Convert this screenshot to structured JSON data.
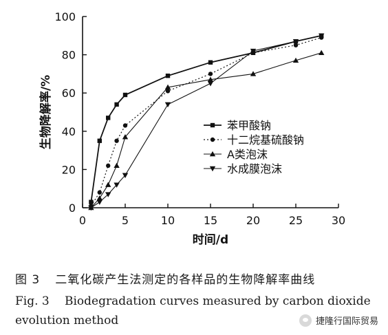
{
  "chart_data": {
    "type": "line",
    "xlabel": "时间/d",
    "ylabel": "生物降解率/%",
    "xlim": [
      0,
      30
    ],
    "ylim": [
      0,
      100
    ],
    "xticks": [
      0,
      5,
      10,
      15,
      20,
      25,
      30
    ],
    "yticks": [
      0,
      20,
      40,
      60,
      80,
      100
    ],
    "grid": false,
    "legend_position": "center-right",
    "series": [
      {
        "name": "苯甲酸钠",
        "marker": "square",
        "line_style": "solid",
        "points": [
          [
            1,
            3
          ],
          [
            2,
            35
          ],
          [
            3,
            47
          ],
          [
            4,
            54
          ],
          [
            5,
            59
          ],
          [
            10,
            69
          ],
          [
            15,
            76
          ],
          [
            20,
            81
          ],
          [
            25,
            87
          ],
          [
            28,
            90
          ]
        ]
      },
      {
        "name": "十二烷基硫酸钠",
        "marker": "circle",
        "line_style": "dotted",
        "points": [
          [
            1,
            1
          ],
          [
            2,
            8
          ],
          [
            3,
            22
          ],
          [
            4,
            35
          ],
          [
            5,
            43
          ],
          [
            10,
            61
          ],
          [
            15,
            70
          ],
          [
            20,
            81
          ],
          [
            25,
            85
          ],
          [
            28,
            89
          ]
        ]
      },
      {
        "name": "A类泡沫",
        "marker": "triangle-up",
        "line_style": "solid-thin",
        "points": [
          [
            1,
            0
          ],
          [
            2,
            5
          ],
          [
            3,
            12
          ],
          [
            4,
            22
          ],
          [
            5,
            37
          ],
          [
            10,
            63
          ],
          [
            15,
            67
          ],
          [
            20,
            70
          ],
          [
            25,
            77
          ],
          [
            28,
            81
          ]
        ]
      },
      {
        "name": "水成膜泡沫",
        "marker": "triangle-down",
        "line_style": "solid-thin",
        "points": [
          [
            1,
            0
          ],
          [
            2,
            3
          ],
          [
            3,
            7
          ],
          [
            4,
            12
          ],
          [
            5,
            17
          ],
          [
            10,
            54
          ],
          [
            15,
            65
          ],
          [
            20,
            82
          ],
          [
            25,
            87
          ],
          [
            28,
            90
          ]
        ]
      }
    ]
  },
  "caption": {
    "cn_fig_no": "图 3",
    "cn_text": "二氧化碳产生法测定的各样品的生物降解率曲线",
    "en_fig_no": "Fig. 3",
    "en_text": "Biodegradation curves measured by carbon dioxide evolution method"
  },
  "watermark": {
    "text": "捷隆行国际贸易",
    "icon": "chat-bubble-icon"
  }
}
